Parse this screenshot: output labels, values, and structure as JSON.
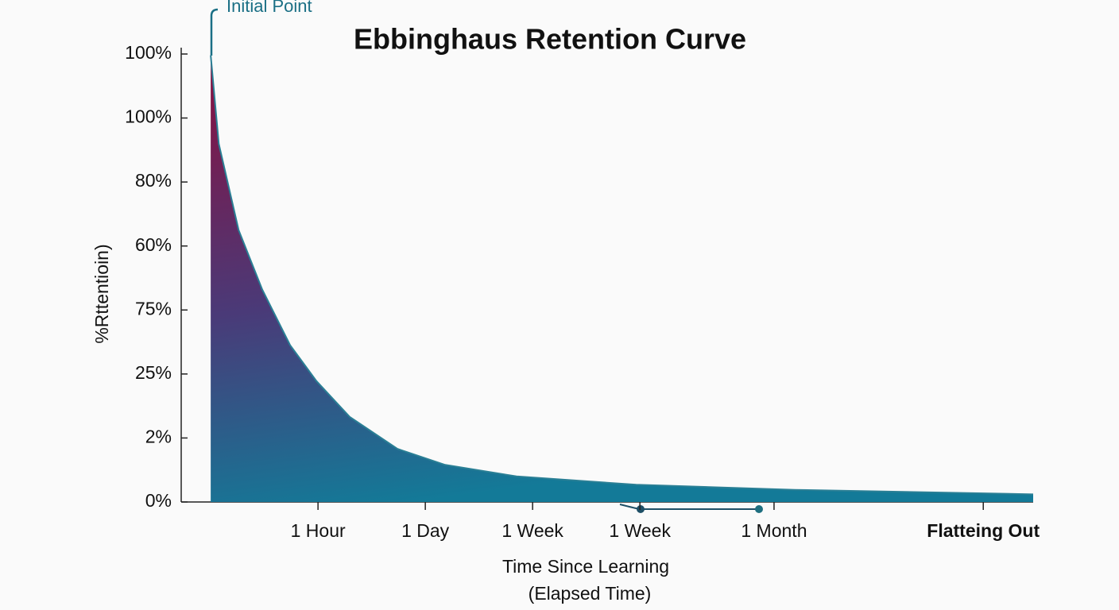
{
  "chart_data": {
    "type": "area",
    "title": "Ebbinghaus Retention Curve",
    "y_label": "%Rttentioin)",
    "x_label": [
      "Time Since Learning",
      "(Elapsed Time)"
    ],
    "annotation": "Initial Point",
    "x": [
      0,
      0.15,
      0.52,
      0.96,
      1.48,
      1.97,
      2.59,
      3.48,
      4.37,
      5.7,
      7.93,
      10.89,
      15.33
    ],
    "series": [
      {
        "name": "Retention",
        "color": "#2a7f95",
        "values": [
          6.98,
          5.6,
          4.25,
          3.32,
          2.45,
          1.89,
          1.33,
          0.83,
          0.58,
          0.4,
          0.27,
          0.19,
          0.12
        ]
      }
    ],
    "xlim": [
      -0.55,
      15.33
    ],
    "ylim": [
      0,
      7
    ],
    "yticks": [
      {
        "value": 0,
        "label": "0%"
      },
      {
        "value": 1,
        "label": "2%"
      },
      {
        "value": 2,
        "label": "25%"
      },
      {
        "value": 3,
        "label": "75%"
      },
      {
        "value": 4,
        "label": "60%"
      },
      {
        "value": 5,
        "label": "80%"
      },
      {
        "value": 6,
        "label": "100%"
      },
      {
        "value": 7,
        "label": "100%"
      }
    ],
    "xticks": [
      {
        "value": 2,
        "label": "1 Hour"
      },
      {
        "value": 4,
        "label": "1 Day"
      },
      {
        "value": 6,
        "label": "1 Week"
      },
      {
        "value": 8,
        "label": "1 Week"
      },
      {
        "value": 10.5,
        "label": "1 Month"
      },
      {
        "value": 14.4,
        "label": "Flatteing Out"
      }
    ]
  }
}
